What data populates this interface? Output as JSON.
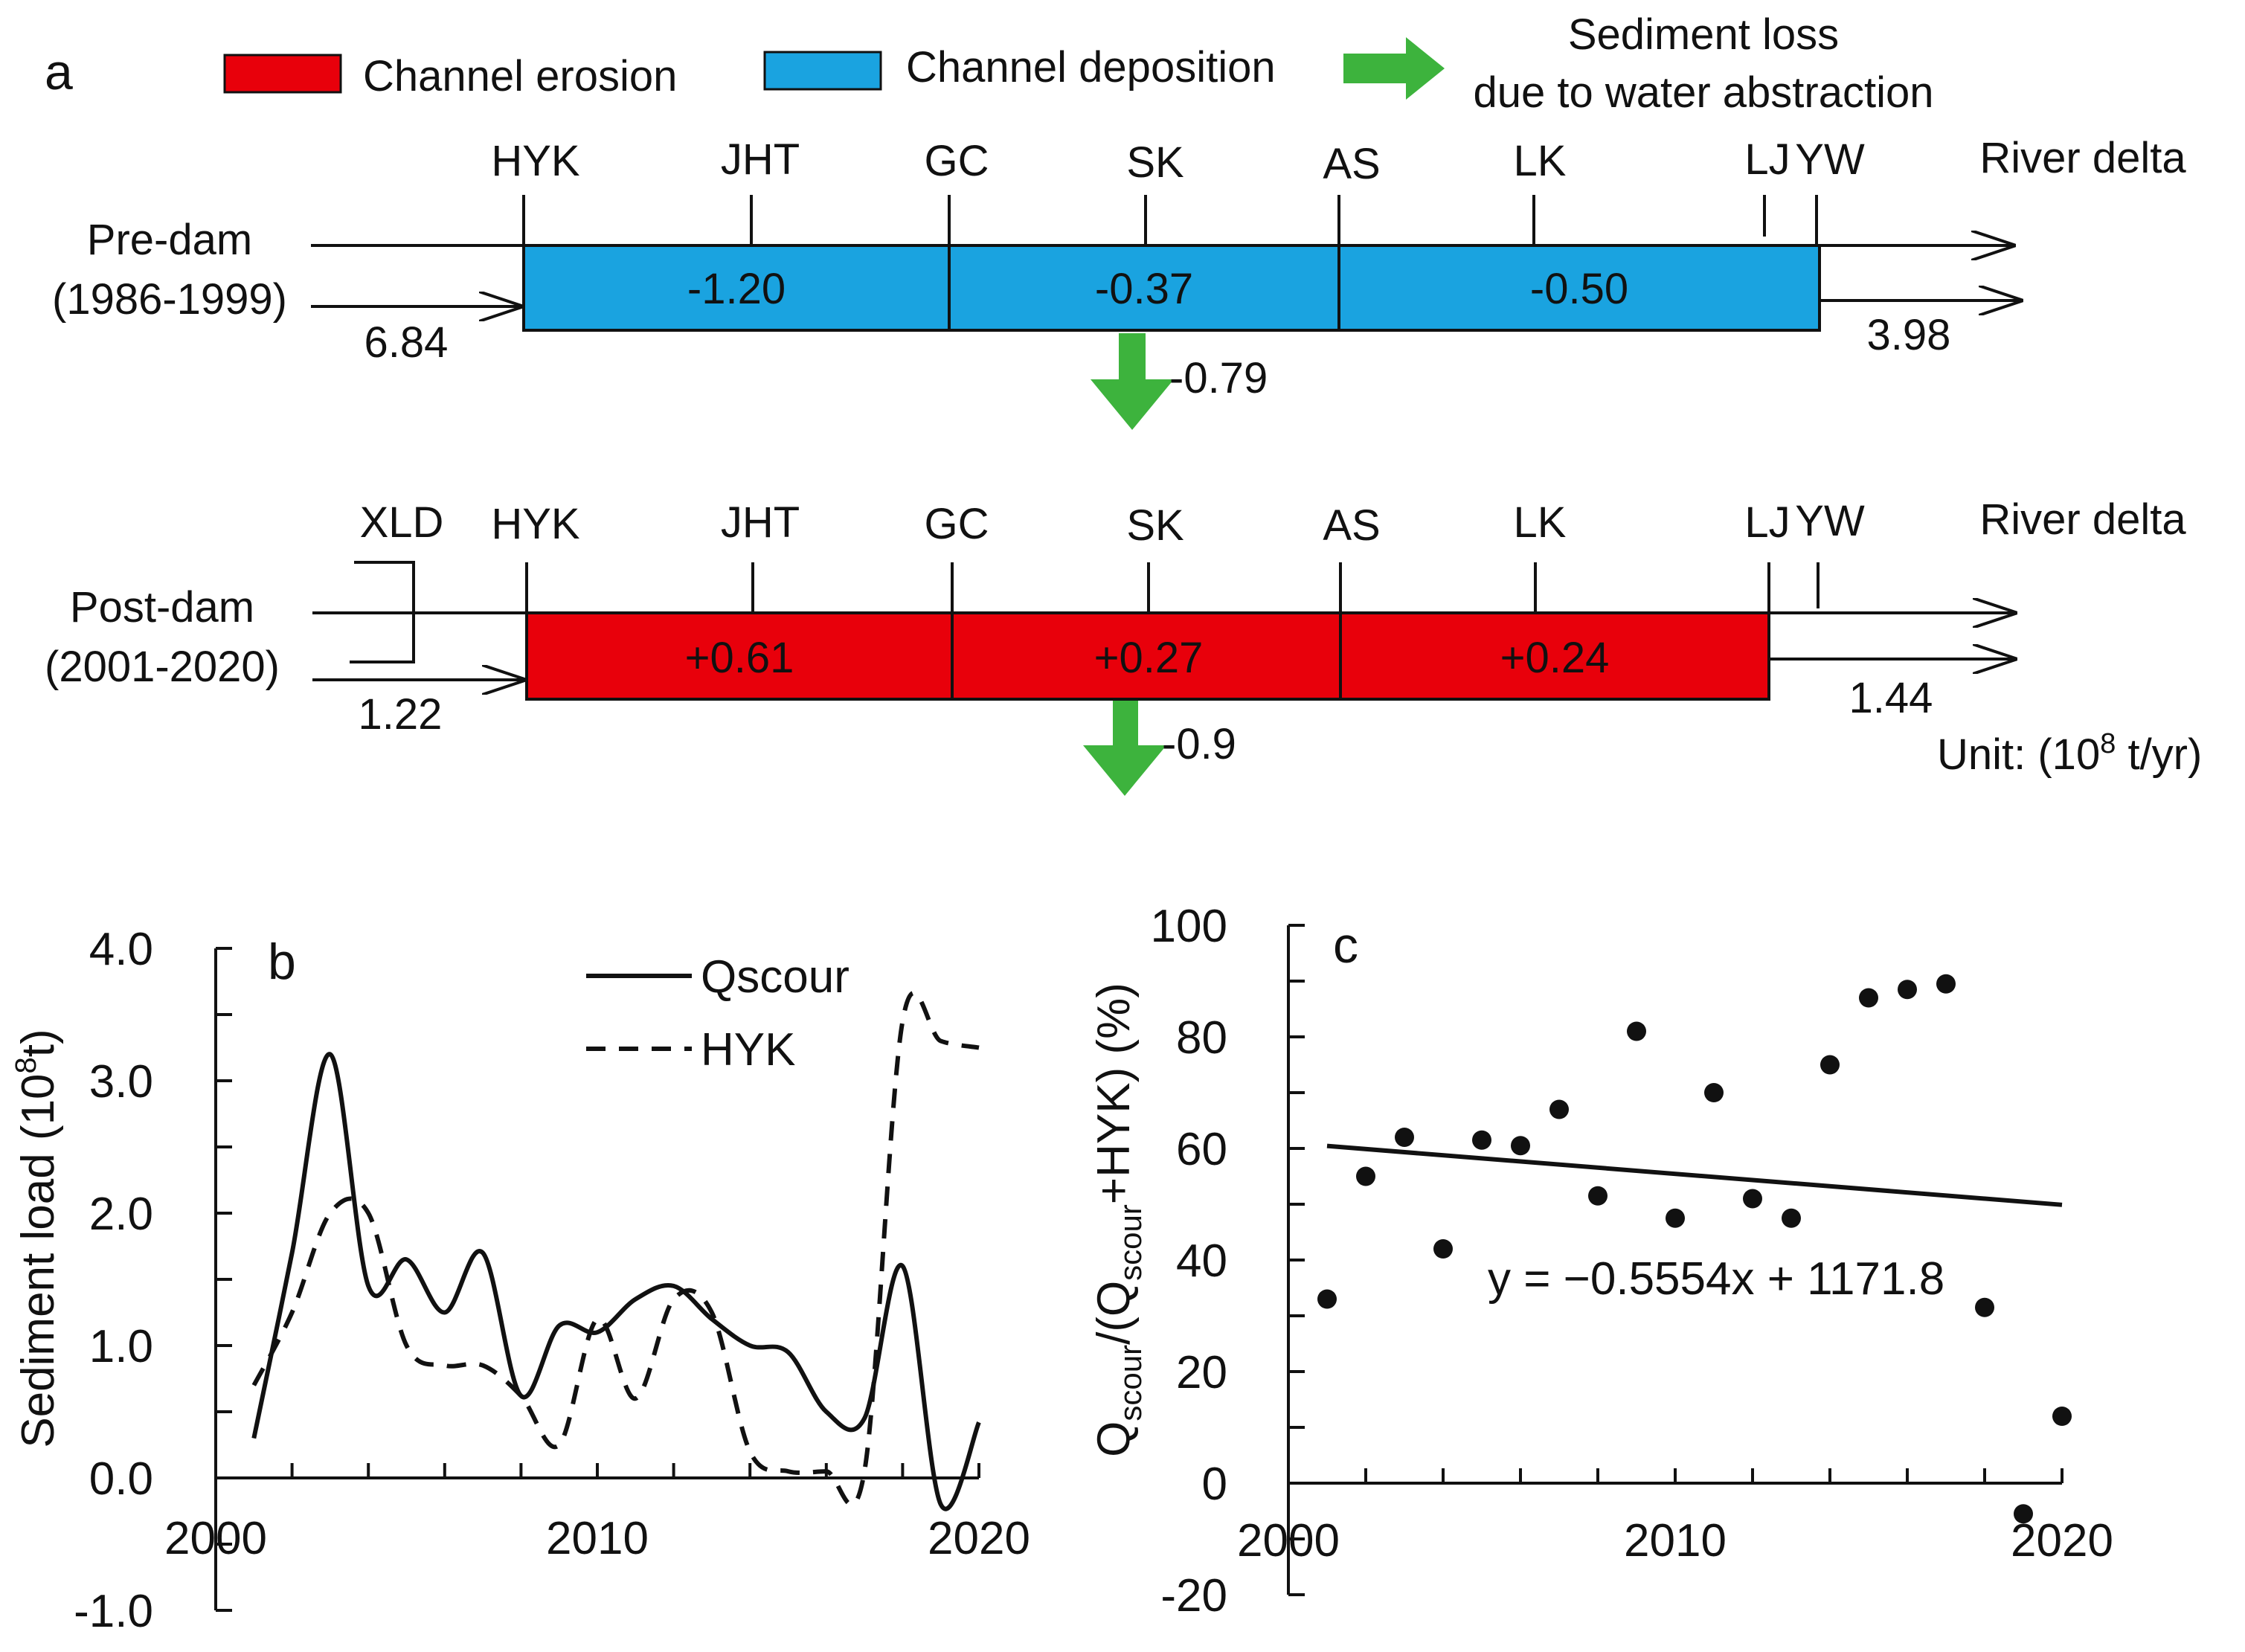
{
  "chart_data": [
    {
      "type": "diagram",
      "panel": "a",
      "legend": {
        "erosion": "Channel erosion",
        "deposition": "Channel deposition",
        "loss_line1": "Sediment loss",
        "loss_line2": "due to water abstraction",
        "erosion_color": "#e8000b",
        "deposition_color": "#1aa3e0",
        "loss_color": "#3db33d"
      },
      "stations": [
        "HYK",
        "JHT",
        "GC",
        "SK",
        "AS",
        "LK",
        "LJ",
        "YW"
      ],
      "river_delta": "River delta",
      "unit_prefix": "Unit: (10",
      "unit_exp": "8",
      "unit_suffix": " t/yr)",
      "pre": {
        "title1": "Pre-dam",
        "title2": "(1986-1999)",
        "input": "6.84",
        "output": "3.98",
        "loss": "-0.79",
        "segments": [
          "-1.20",
          "-0.37",
          "-0.50"
        ]
      },
      "post": {
        "title1": "Post-dam",
        "title2": "(2001-2020)",
        "upstream": "XLD",
        "input": "1.22",
        "output": "1.44",
        "loss": "-0.9",
        "segments": [
          "+0.61",
          "+0.27",
          "+0.24"
        ]
      }
    },
    {
      "type": "line",
      "panel": "b",
      "ylabel_main": "Sediment load (10",
      "ylabel_exp": "8",
      "ylabel_end": "t)",
      "xlim": [
        2000,
        2020
      ],
      "ylim": [
        -1.0,
        4.0
      ],
      "xticks": [
        "2000",
        "2010",
        "2020"
      ],
      "yticks": [
        "4.0",
        "3.0",
        "2.0",
        "1.0",
        "0.0",
        "-1.0"
      ],
      "series": [
        {
          "name": "Qscour",
          "style": "solid",
          "x": [
            2001,
            2002,
            2003,
            2004,
            2005,
            2006,
            2007,
            2008,
            2009,
            2010,
            2011,
            2012,
            2013,
            2014,
            2015,
            2016,
            2017,
            2018,
            2019,
            2020
          ],
          "values": [
            0.3,
            1.7,
            3.2,
            1.45,
            1.65,
            1.25,
            1.7,
            0.62,
            1.15,
            1.1,
            1.35,
            1.45,
            1.2,
            1.0,
            0.95,
            0.5,
            0.45,
            1.6,
            -0.2,
            0.42
          ]
        },
        {
          "name": "HYK",
          "style": "dashed",
          "x": [
            2001,
            2002,
            2003,
            2004,
            2005,
            2006,
            2007,
            2008,
            2009,
            2010,
            2011,
            2012,
            2013,
            2014,
            2015,
            2016,
            2017,
            2018,
            2019,
            2020
          ],
          "values": [
            0.7,
            1.25,
            2.0,
            2.0,
            1.0,
            0.85,
            0.85,
            0.62,
            0.25,
            1.2,
            0.6,
            1.35,
            1.25,
            0.2,
            0.05,
            0.05,
            0.05,
            3.45,
            3.3,
            3.25
          ]
        }
      ]
    },
    {
      "type": "scatter",
      "panel": "c",
      "ylabel_a": "Q",
      "ylabel_b": "scour",
      "ylabel_c": "/(Q",
      "ylabel_d": "scour",
      "ylabel_e": "+HYK) (%)",
      "xlim": [
        2000,
        2020
      ],
      "ylim": [
        -20,
        100
      ],
      "xticks": [
        "2000",
        "2010",
        "2020"
      ],
      "yticks": [
        "100",
        "80",
        "60",
        "40",
        "20",
        "0",
        "-20"
      ],
      "points": {
        "x": [
          2001,
          2002,
          2003,
          2004,
          2005,
          2006,
          2007,
          2008,
          2009,
          2010,
          2011,
          2012,
          2013,
          2014,
          2015,
          2016,
          2017,
          2018,
          2019,
          2020
        ],
        "y": [
          33,
          55,
          62,
          42,
          61.5,
          60.5,
          67,
          51.5,
          81,
          47.5,
          70,
          51,
          47.5,
          75,
          87,
          88.5,
          89.5,
          31.5,
          -5.5,
          12
        ]
      },
      "trend": {
        "slope": -0.5554,
        "intercept": 1171.8
      },
      "equation": "y = −0.5554x + 1171.8"
    }
  ]
}
